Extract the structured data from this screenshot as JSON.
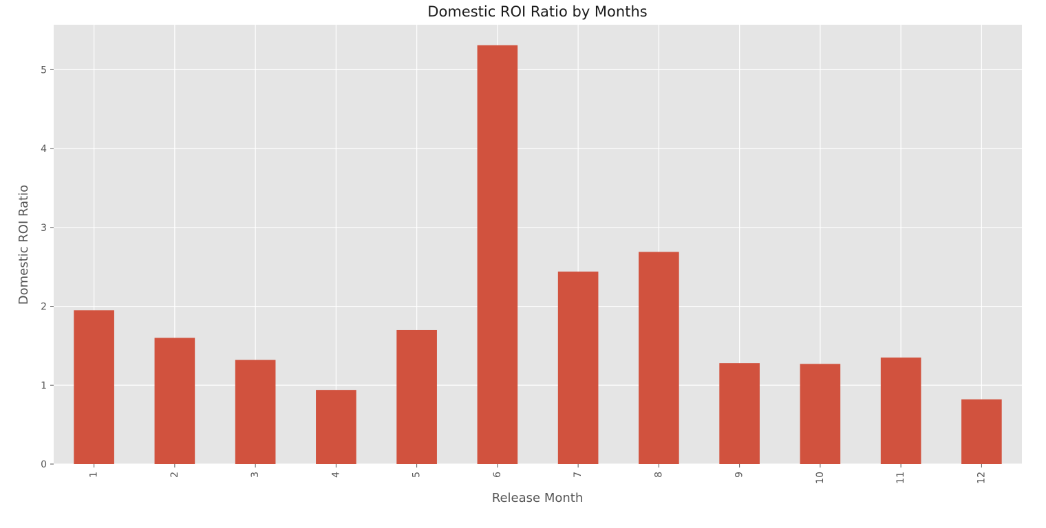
{
  "chart_data": {
    "type": "bar",
    "title": "Domestic ROI Ratio by Months",
    "xlabel": "Release Month",
    "ylabel": "Domestic ROI Ratio",
    "categories": [
      "1",
      "2",
      "3",
      "4",
      "5",
      "6",
      "7",
      "8",
      "9",
      "10",
      "11",
      "12"
    ],
    "values": [
      1.95,
      1.6,
      1.32,
      0.94,
      1.7,
      5.31,
      2.44,
      2.69,
      1.28,
      1.27,
      1.35,
      0.82
    ],
    "ylim": [
      0,
      5.57
    ],
    "yticks": [
      0,
      1,
      2,
      3,
      4,
      5
    ],
    "xtick_rotation_degrees": 90,
    "grid": true,
    "legend": false,
    "bar_color": "#d1523e",
    "plot_background": "#e5e5e5",
    "grid_color": "#ffffff"
  }
}
